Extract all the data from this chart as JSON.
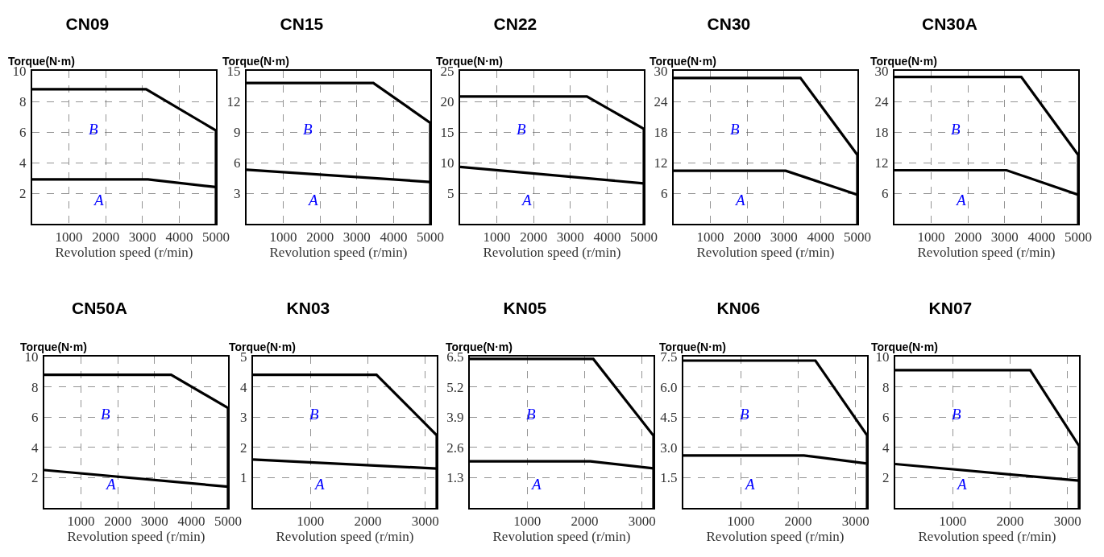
{
  "chart_data": [
    {
      "type": "line",
      "title": "CN09",
      "xlabel": "Revolution speed (r/min)",
      "ylabel": "Torque(N·m)",
      "xlim": [
        0,
        5000
      ],
      "xticks": [
        1000,
        2000,
        3000,
        4000,
        5000
      ],
      "ylim": [
        0,
        10
      ],
      "yticks": [
        2,
        4,
        6,
        8,
        10
      ],
      "grid": true,
      "series": [
        {
          "color": "#000000",
          "x": [
            0,
            3100,
            5000,
            5000
          ],
          "values": [
            8.8,
            8.8,
            6.1,
            0
          ]
        },
        {
          "color": "#000000",
          "x": [
            0,
            3150,
            5000
          ],
          "values": [
            2.9,
            2.9,
            2.4
          ]
        }
      ],
      "annotations": [
        "B",
        "A"
      ]
    },
    {
      "type": "line",
      "title": "CN15",
      "xlabel": "Revolution speed (r/min)",
      "ylabel": "Torque(N·m)",
      "xlim": [
        0,
        5000
      ],
      "xticks": [
        1000,
        2000,
        3000,
        4000,
        5000
      ],
      "ylim": [
        0,
        15
      ],
      "yticks": [
        3,
        6,
        9,
        12,
        15
      ],
      "grid": true,
      "series": [
        {
          "color": "#000000",
          "x": [
            0,
            3450,
            5000,
            5000
          ],
          "values": [
            13.8,
            13.8,
            9.9,
            0
          ]
        },
        {
          "color": "#000000",
          "x": [
            0,
            5000
          ],
          "values": [
            5.3,
            4.1
          ]
        }
      ],
      "annotations": [
        "B",
        "A"
      ]
    },
    {
      "type": "line",
      "title": "CN22",
      "xlabel": "Revolution speed (r/min)",
      "ylabel": "Torque(N·m)",
      "xlim": [
        0,
        5000
      ],
      "xticks": [
        1000,
        2000,
        3000,
        4000,
        5000
      ],
      "ylim": [
        0,
        25
      ],
      "yticks": [
        5,
        10,
        15,
        20,
        25
      ],
      "grid": true,
      "series": [
        {
          "color": "#000000",
          "x": [
            0,
            3450,
            5000,
            5000
          ],
          "values": [
            20.8,
            20.8,
            15.5,
            0
          ]
        },
        {
          "color": "#000000",
          "x": [
            0,
            5000
          ],
          "values": [
            9.3,
            6.6
          ]
        }
      ],
      "annotations": [
        "B",
        "A"
      ]
    },
    {
      "type": "line",
      "title": "CN30",
      "xlabel": "Revolution speed (r/min)",
      "ylabel": "Torque(N·m)",
      "xlim": [
        0,
        5000
      ],
      "xticks": [
        1000,
        2000,
        3000,
        4000,
        5000
      ],
      "ylim": [
        0,
        30
      ],
      "yticks": [
        6,
        12,
        18,
        24,
        30
      ],
      "grid": true,
      "series": [
        {
          "color": "#000000",
          "x": [
            0,
            3450,
            5000,
            5000
          ],
          "values": [
            28.6,
            28.6,
            13.5,
            0
          ]
        },
        {
          "color": "#000000",
          "x": [
            0,
            3050,
            5000
          ],
          "values": [
            10.4,
            10.4,
            5.7
          ]
        }
      ],
      "annotations": [
        "B",
        "A"
      ]
    },
    {
      "type": "line",
      "title": "CN30A",
      "xlabel": "Revolution speed (r/min)",
      "ylabel": "Torque(N·m)",
      "xlim": [
        0,
        5000
      ],
      "xticks": [
        1000,
        2000,
        3000,
        4000,
        5000
      ],
      "ylim": [
        0,
        30
      ],
      "yticks": [
        6,
        12,
        18,
        24,
        30
      ],
      "grid": true,
      "series": [
        {
          "color": "#000000",
          "x": [
            0,
            3450,
            5000,
            5000
          ],
          "values": [
            28.8,
            28.8,
            13.5,
            0
          ]
        },
        {
          "color": "#000000",
          "x": [
            0,
            3050,
            5000
          ],
          "values": [
            10.5,
            10.5,
            5.7
          ]
        }
      ],
      "annotations": [
        "B",
        "A"
      ]
    },
    {
      "type": "line",
      "title": "CN50A",
      "xlabel": "Revolution speed (r/min)",
      "ylabel": "Torque(N·m)",
      "xlim": [
        0,
        5000
      ],
      "xticks": [
        1000,
        2000,
        3000,
        4000,
        5000
      ],
      "ylim": [
        0,
        10
      ],
      "yticks": [
        2,
        4,
        6,
        8,
        10
      ],
      "grid": true,
      "series": [
        {
          "color": "#000000",
          "x": [
            0,
            3450,
            5000,
            5000
          ],
          "values": [
            8.8,
            8.8,
            6.6,
            0
          ]
        },
        {
          "color": "#000000",
          "x": [
            0,
            5000
          ],
          "values": [
            2.5,
            1.4
          ]
        }
      ],
      "annotations": [
        "B",
        "A"
      ]
    },
    {
      "type": "line",
      "title": "KN03",
      "xlabel": "Revolution speed (r/min)",
      "ylabel": "Torque(N·m)",
      "xlim": [
        0,
        3200
      ],
      "xticks": [
        1000,
        2000,
        3000
      ],
      "ylim": [
        0,
        5
      ],
      "yticks": [
        1,
        2,
        3,
        4,
        5
      ],
      "grid": true,
      "series": [
        {
          "color": "#000000",
          "x": [
            0,
            2150,
            3200,
            3200
          ],
          "values": [
            4.4,
            4.4,
            2.4,
            0
          ]
        },
        {
          "color": "#000000",
          "x": [
            0,
            3200
          ],
          "values": [
            1.6,
            1.3
          ]
        }
      ],
      "annotations": [
        "B",
        "A"
      ]
    },
    {
      "type": "line",
      "title": "KN05",
      "xlabel": "Revolution speed (r/min)",
      "ylabel": "Torque(N·m)",
      "xlim": [
        0,
        3200
      ],
      "xticks": [
        1000,
        2000,
        3000
      ],
      "ylim": [
        0,
        6.5
      ],
      "yticks": [
        1.3,
        2.6,
        3.9,
        5.2,
        6.5
      ],
      "grid": true,
      "series": [
        {
          "color": "#000000",
          "x": [
            0,
            2150,
            3200,
            3200
          ],
          "values": [
            6.4,
            6.4,
            3.1,
            0
          ]
        },
        {
          "color": "#000000",
          "x": [
            0,
            2100,
            3200
          ],
          "values": [
            2.0,
            2.0,
            1.7
          ]
        }
      ],
      "annotations": [
        "B",
        "A"
      ]
    },
    {
      "type": "line",
      "title": "KN06",
      "xlabel": "Revolution speed (r/min)",
      "ylabel": "Torque(N·m)",
      "xlim": [
        0,
        3200
      ],
      "xticks": [
        1000,
        2000,
        3000
      ],
      "ylim": [
        0,
        7.5
      ],
      "yticks": [
        {
          "value": 1.5,
          "label": "1.5"
        },
        {
          "value": 3,
          "label": "3.0"
        },
        {
          "value": 4.5,
          "label": "4.5"
        },
        {
          "value": 6,
          "label": "6.0"
        },
        {
          "value": 7.5,
          "label": "7.5"
        }
      ],
      "grid": true,
      "series": [
        {
          "color": "#000000",
          "x": [
            0,
            2300,
            3200,
            3200
          ],
          "values": [
            7.3,
            7.3,
            3.6,
            0
          ]
        },
        {
          "color": "#000000",
          "x": [
            0,
            2100,
            3200
          ],
          "values": [
            2.6,
            2.6,
            2.2
          ]
        }
      ],
      "annotations": [
        "B",
        "A"
      ]
    },
    {
      "type": "line",
      "title": "KN07",
      "xlabel": "Revolution speed (r/min)",
      "ylabel": "Torque(N·m)",
      "xlim": [
        0,
        3200
      ],
      "xticks": [
        1000,
        2000,
        3000
      ],
      "ylim": [
        0,
        10
      ],
      "yticks": [
        2,
        4,
        6,
        8,
        10
      ],
      "grid": true,
      "series": [
        {
          "color": "#000000",
          "x": [
            0,
            2350,
            3200,
            3200
          ],
          "values": [
            9.1,
            9.1,
            4.1,
            0
          ]
        },
        {
          "color": "#000000",
          "x": [
            0,
            3200
          ],
          "values": [
            2.9,
            1.8
          ]
        }
      ],
      "annotations": [
        "B",
        "A"
      ]
    }
  ]
}
